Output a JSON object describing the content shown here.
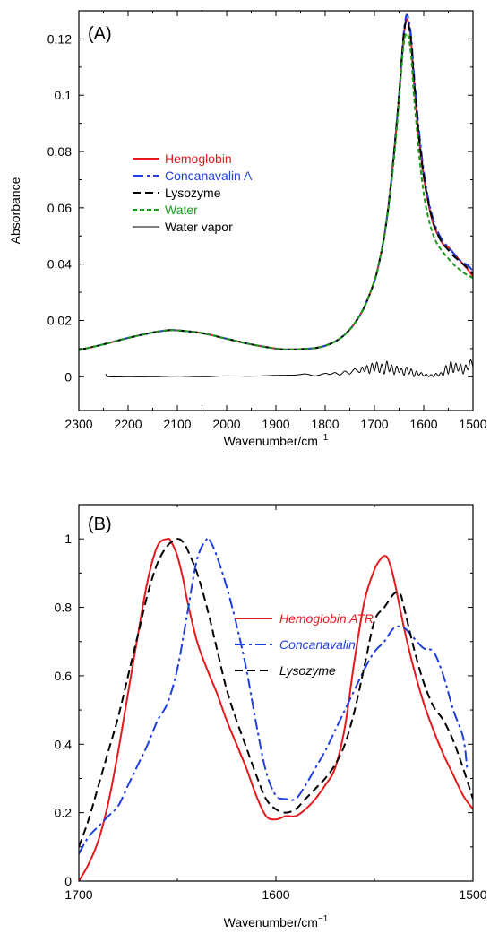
{
  "chart_data": [
    {
      "panel": "(A)",
      "type": "line",
      "xlabel": "Wavenumber/cm",
      "xlabel_sup": "−1",
      "ylabel": "Absorbance",
      "xlim": [
        2300,
        1500
      ],
      "ylim": [
        -0.012,
        0.13
      ],
      "x_ticks": [
        2300,
        2200,
        2100,
        2000,
        1900,
        1800,
        1700,
        1600,
        1500
      ],
      "y_ticks": [
        0,
        0.02,
        0.04,
        0.06,
        0.08,
        0.1,
        0.12
      ],
      "y_tick_labels": [
        "0",
        "0.02",
        "0.04",
        "0.06",
        "0.08",
        "0.1",
        "0.12"
      ],
      "legend_position": "middle-left",
      "series": [
        {
          "name": "Hemoglobin",
          "color": "#e41a1c",
          "dash": "solid",
          "width": 2,
          "x": [
            2300,
            2250,
            2200,
            2150,
            2120,
            2100,
            2050,
            2000,
            1950,
            1900,
            1880,
            1850,
            1820,
            1800,
            1780,
            1760,
            1740,
            1720,
            1700,
            1690,
            1680,
            1670,
            1660,
            1650,
            1645,
            1640,
            1635,
            1630,
            1625,
            1620,
            1615,
            1610,
            1600,
            1590,
            1580,
            1570,
            1560,
            1550,
            1540,
            1530,
            1520,
            1510,
            1500
          ],
          "y": [
            0.0095,
            0.0115,
            0.0138,
            0.0157,
            0.0165,
            0.0165,
            0.0155,
            0.0135,
            0.0115,
            0.01,
            0.0097,
            0.0098,
            0.0102,
            0.011,
            0.0125,
            0.015,
            0.019,
            0.025,
            0.034,
            0.041,
            0.05,
            0.063,
            0.08,
            0.1,
            0.112,
            0.122,
            0.127,
            0.125,
            0.118,
            0.105,
            0.095,
            0.085,
            0.071,
            0.061,
            0.054,
            0.05,
            0.047,
            0.046,
            0.044,
            0.042,
            0.04,
            0.038,
            0.0355
          ]
        },
        {
          "name": "Concanavalin A",
          "color": "#1f3fe0",
          "dash": "dashdot",
          "width": 2,
          "x": [
            2300,
            2250,
            2200,
            2150,
            2120,
            2100,
            2050,
            2000,
            1950,
            1900,
            1880,
            1850,
            1820,
            1800,
            1780,
            1760,
            1740,
            1720,
            1700,
            1690,
            1680,
            1670,
            1660,
            1650,
            1645,
            1640,
            1635,
            1630,
            1625,
            1620,
            1615,
            1610,
            1600,
            1590,
            1580,
            1570,
            1560,
            1550,
            1540,
            1530,
            1520,
            1510,
            1500
          ],
          "y": [
            0.0095,
            0.0115,
            0.0138,
            0.0157,
            0.0165,
            0.0165,
            0.0155,
            0.0135,
            0.0115,
            0.01,
            0.0097,
            0.0098,
            0.0102,
            0.011,
            0.0125,
            0.015,
            0.019,
            0.025,
            0.034,
            0.041,
            0.05,
            0.063,
            0.08,
            0.1,
            0.112,
            0.123,
            0.1285,
            0.1265,
            0.12,
            0.108,
            0.098,
            0.088,
            0.073,
            0.0625,
            0.0555,
            0.051,
            0.048,
            0.046,
            0.044,
            0.042,
            0.0405,
            0.0395,
            0.0375
          ]
        },
        {
          "name": "Lysozyme",
          "color": "#000000",
          "dash": "dashed",
          "width": 2,
          "x": [
            2300,
            2250,
            2200,
            2150,
            2120,
            2100,
            2050,
            2000,
            1950,
            1900,
            1880,
            1850,
            1820,
            1800,
            1780,
            1760,
            1740,
            1720,
            1700,
            1690,
            1680,
            1670,
            1660,
            1650,
            1645,
            1640,
            1635,
            1630,
            1625,
            1620,
            1615,
            1610,
            1600,
            1590,
            1580,
            1570,
            1560,
            1550,
            1540,
            1530,
            1520,
            1510,
            1500
          ],
          "y": [
            0.0095,
            0.0115,
            0.0138,
            0.0157,
            0.0165,
            0.0165,
            0.0155,
            0.0135,
            0.0115,
            0.01,
            0.0097,
            0.0098,
            0.0102,
            0.011,
            0.0125,
            0.015,
            0.019,
            0.025,
            0.034,
            0.041,
            0.05,
            0.063,
            0.08,
            0.1,
            0.112,
            0.1225,
            0.1265,
            0.1245,
            0.118,
            0.106,
            0.096,
            0.086,
            0.0715,
            0.0615,
            0.0545,
            0.05,
            0.047,
            0.045,
            0.043,
            0.0415,
            0.04,
            0.0385,
            0.0365
          ]
        },
        {
          "name": "Water",
          "color": "#1a9a1a",
          "dash": "dotted",
          "width": 2,
          "x": [
            2300,
            2250,
            2200,
            2150,
            2120,
            2100,
            2050,
            2000,
            1950,
            1900,
            1880,
            1850,
            1820,
            1800,
            1780,
            1760,
            1740,
            1720,
            1700,
            1690,
            1680,
            1670,
            1660,
            1650,
            1645,
            1640,
            1635,
            1630,
            1625,
            1620,
            1615,
            1610,
            1600,
            1590,
            1580,
            1570,
            1560,
            1550,
            1540,
            1530,
            1520,
            1510,
            1500
          ],
          "y": [
            0.0095,
            0.0115,
            0.0138,
            0.0157,
            0.0165,
            0.0165,
            0.0155,
            0.0135,
            0.0115,
            0.01,
            0.0097,
            0.0098,
            0.0102,
            0.011,
            0.0125,
            0.015,
            0.019,
            0.025,
            0.034,
            0.041,
            0.05,
            0.062,
            0.078,
            0.098,
            0.11,
            0.119,
            0.122,
            0.12,
            0.113,
            0.1,
            0.09,
            0.08,
            0.065,
            0.056,
            0.05,
            0.0465,
            0.044,
            0.042,
            0.04,
            0.0385,
            0.037,
            0.036,
            0.035
          ]
        },
        {
          "name": "Water vapor",
          "color": "#000000",
          "dash": "solid",
          "width": 1,
          "x": [
            2245,
            2240,
            2200,
            2150,
            2100,
            2050,
            2000,
            1950,
            1900,
            1860,
            1840,
            1820,
            1800,
            1790,
            1780,
            1770,
            1760,
            1750,
            1740,
            1730,
            1725,
            1720,
            1715,
            1710,
            1705,
            1700,
            1695,
            1690,
            1685,
            1680,
            1675,
            1670,
            1665,
            1660,
            1655,
            1650,
            1645,
            1640,
            1635,
            1630,
            1625,
            1620,
            1615,
            1610,
            1605,
            1600,
            1595,
            1590,
            1585,
            1580,
            1575,
            1570,
            1565,
            1560,
            1555,
            1550,
            1545,
            1540,
            1535,
            1530,
            1525,
            1520,
            1515,
            1510,
            1505,
            1500
          ],
          "y": [
            0.001,
            0.0,
            0.0,
            0.0,
            0.0002,
            0.0,
            0.0003,
            0.0002,
            0.0005,
            0.0006,
            0.001,
            0.0003,
            0.0012,
            0.0008,
            0.0015,
            0.0006,
            0.002,
            0.001,
            0.0028,
            0.0015,
            0.0035,
            0.0018,
            0.004,
            0.0012,
            0.0048,
            0.002,
            0.0052,
            0.0015,
            0.0045,
            0.001,
            0.0055,
            0.0018,
            0.0042,
            0.0008,
            0.0038,
            0.0015,
            0.003,
            0.0005,
            0.0035,
            0.001,
            0.0028,
            0.0,
            0.002,
            0.0005,
            0.0015,
            0.0002,
            0.001,
            0.0,
            0.0008,
            0.0,
            0.0012,
            0.0003,
            0.0015,
            0.0005,
            0.004,
            0.001,
            0.0055,
            0.0015,
            0.0048,
            0.002,
            0.0045,
            0.001,
            0.0042,
            0.0025,
            0.006,
            0.0035
          ]
        }
      ]
    },
    {
      "panel": "(B)",
      "type": "line",
      "xlabel": "Wavenumber/cm",
      "xlabel_sup": "−1",
      "ylabel": "",
      "xlim": [
        1700,
        1500
      ],
      "ylim": [
        0,
        1.1
      ],
      "x_ticks": [
        1700,
        1600,
        1500
      ],
      "y_ticks": [
        0,
        0.2,
        0.4,
        0.6,
        0.8,
        1
      ],
      "y_tick_labels": [
        "0",
        "0.2",
        "0.4",
        "0.6",
        "0.8",
        "1"
      ],
      "legend_position": "top-right",
      "series": [
        {
          "name": "Hemoglobin ATR",
          "color": "#e41a1c",
          "dash": "solid",
          "width": 2,
          "x": [
            1700,
            1695,
            1690,
            1685,
            1680,
            1675,
            1670,
            1665,
            1660,
            1655,
            1653,
            1650,
            1647,
            1645,
            1640,
            1635,
            1630,
            1625,
            1620,
            1615,
            1610,
            1605,
            1600,
            1595,
            1590,
            1585,
            1580,
            1575,
            1570,
            1565,
            1560,
            1555,
            1550,
            1547,
            1545,
            1543,
            1540,
            1535,
            1530,
            1525,
            1520,
            1515,
            1510,
            1505,
            1500
          ],
          "y": [
            0.0,
            0.05,
            0.12,
            0.23,
            0.38,
            0.55,
            0.72,
            0.88,
            0.98,
            1.0,
            0.99,
            0.95,
            0.88,
            0.82,
            0.7,
            0.62,
            0.55,
            0.47,
            0.4,
            0.33,
            0.25,
            0.19,
            0.18,
            0.19,
            0.19,
            0.21,
            0.24,
            0.28,
            0.33,
            0.45,
            0.65,
            0.82,
            0.91,
            0.94,
            0.95,
            0.94,
            0.88,
            0.74,
            0.62,
            0.52,
            0.44,
            0.37,
            0.31,
            0.25,
            0.21
          ]
        },
        {
          "name": "Concanavalin",
          "color": "#1f3fe0",
          "dash": "dashdot",
          "width": 2,
          "x": [
            1700,
            1695,
            1690,
            1685,
            1680,
            1675,
            1670,
            1665,
            1660,
            1655,
            1650,
            1645,
            1640,
            1635,
            1633,
            1630,
            1625,
            1620,
            1615,
            1610,
            1605,
            1600,
            1595,
            1590,
            1585,
            1580,
            1575,
            1570,
            1565,
            1560,
            1555,
            1550,
            1545,
            1540,
            1535,
            1530,
            1525,
            1520,
            1515,
            1510,
            1505,
            1503
          ],
          "y": [
            0.08,
            0.13,
            0.16,
            0.19,
            0.22,
            0.28,
            0.34,
            0.4,
            0.47,
            0.52,
            0.62,
            0.78,
            0.94,
            1.0,
            0.99,
            0.95,
            0.86,
            0.75,
            0.62,
            0.46,
            0.32,
            0.25,
            0.24,
            0.24,
            0.28,
            0.33,
            0.38,
            0.44,
            0.5,
            0.56,
            0.62,
            0.67,
            0.7,
            0.74,
            0.74,
            0.71,
            0.68,
            0.67,
            0.6,
            0.5,
            0.42,
            0.33
          ]
        },
        {
          "name": "Lysozyme",
          "color": "#000000",
          "dash": "dashed",
          "width": 2,
          "x": [
            1700,
            1695,
            1690,
            1685,
            1680,
            1675,
            1670,
            1665,
            1660,
            1655,
            1650,
            1647,
            1645,
            1640,
            1635,
            1630,
            1625,
            1620,
            1615,
            1610,
            1605,
            1600,
            1595,
            1590,
            1585,
            1580,
            1575,
            1570,
            1565,
            1560,
            1555,
            1550,
            1545,
            1540,
            1537,
            1535,
            1530,
            1525,
            1520,
            1515,
            1510,
            1505,
            1500
          ],
          "y": [
            0.1,
            0.18,
            0.28,
            0.38,
            0.48,
            0.6,
            0.72,
            0.84,
            0.93,
            0.98,
            1.0,
            0.99,
            0.97,
            0.9,
            0.8,
            0.68,
            0.56,
            0.47,
            0.39,
            0.31,
            0.24,
            0.21,
            0.2,
            0.21,
            0.24,
            0.27,
            0.3,
            0.34,
            0.4,
            0.5,
            0.63,
            0.76,
            0.8,
            0.84,
            0.84,
            0.8,
            0.68,
            0.58,
            0.51,
            0.47,
            0.41,
            0.33,
            0.24
          ]
        }
      ]
    }
  ]
}
